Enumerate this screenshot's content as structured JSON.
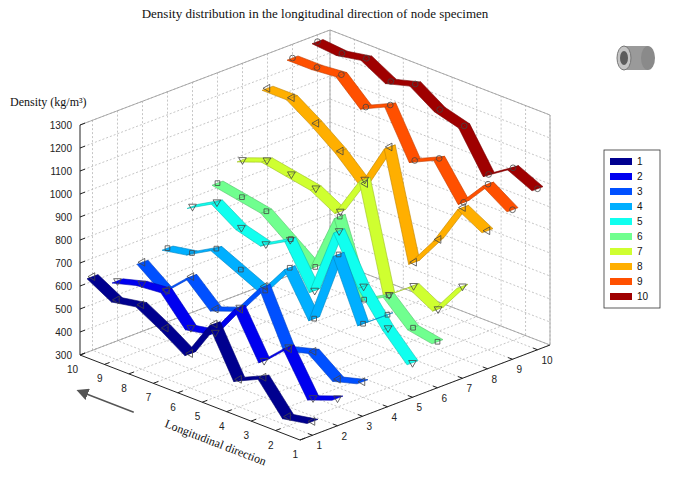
{
  "chart_data": {
    "type": "ribbon3d",
    "title": "Density distribution in the longitudinal direction of node specimen",
    "xlabel": "Longitudinal direction",
    "ylabel": "Density (kg/m³)",
    "x": [
      1,
      2,
      3,
      4,
      5,
      6,
      7,
      8,
      9,
      10
    ],
    "xlim": [
      1,
      10
    ],
    "xticks": [
      1,
      2,
      3,
      4,
      5,
      6,
      7,
      8,
      9,
      10
    ],
    "ylim": [
      300,
      1300
    ],
    "yticks": [
      300,
      400,
      500,
      600,
      700,
      800,
      900,
      1000,
      1100,
      1200,
      1300
    ],
    "zlim": [
      0.5,
      10.5
    ],
    "zticks": [
      1,
      2,
      3,
      4,
      5,
      6,
      7,
      8,
      9,
      10
    ],
    "grid": true,
    "legend": "right",
    "series": [
      {
        "name": "1",
        "position": 1,
        "color": "#00008F",
        "marker": "triangle-left",
        "values": [
          360,
          340,
          470,
          420,
          620,
          450,
          520,
          580,
          560,
          620
        ]
      },
      {
        "name": "2",
        "position": 2,
        "color": "#0000EF",
        "marker": "triangle-down",
        "values": [
          420,
          380,
          560,
          460,
          650,
          500,
          480,
          600,
          590,
          560
        ]
      },
      {
        "name": "3",
        "position": 3,
        "color": "#0050FF",
        "marker": "triangle-left",
        "values": [
          450,
          420,
          500,
          470,
          700,
          560,
          520,
          620,
          520,
          600
        ]
      },
      {
        "name": "4",
        "position": 4,
        "color": "#00AFFF",
        "marker": "square",
        "values": [
          700,
          620,
          880,
          560,
          740,
          600,
          650,
          700,
          640,
          620
        ]
      },
      {
        "name": "5",
        "position": 5,
        "color": "#10FFEF",
        "marker": "triangle-down",
        "values": [
          450,
          560,
          700,
          900,
          600,
          780,
          720,
          750,
          820,
          760
        ]
      },
      {
        "name": "6",
        "position": 6,
        "color": "#70FF8F",
        "marker": "square",
        "values": [
          500,
          520,
          620,
          560,
          880,
          620,
          700,
          780,
          800,
          820
        ]
      },
      {
        "name": "7",
        "position": 7,
        "color": "#CFFF30",
        "marker": "triangle-down",
        "values": [
          700,
          560,
          620,
          540,
          1000,
          820,
          880,
          900,
          920,
          880
        ]
      },
      {
        "name": "8",
        "position": 8,
        "color": "#FFAF00",
        "marker": "triangle-left",
        "values": [
          900,
          960,
          780,
          640,
          1100,
          900,
          1000,
          1080,
          1150,
          1150
        ]
      },
      {
        "name": "9",
        "position": 9,
        "color": "#FF5000",
        "marker": "circle",
        "values": [
          950,
          1020,
          900,
          1050,
          1000,
          1200,
          1150,
          1250,
          1240,
          1240
        ]
      },
      {
        "name": "10",
        "position": 10,
        "color": "#9F0000",
        "marker": "circle",
        "values": [
          1000,
          1050,
          980,
          1150,
          1180,
          1250,
          1220,
          1280,
          1260,
          1270
        ]
      }
    ]
  }
}
